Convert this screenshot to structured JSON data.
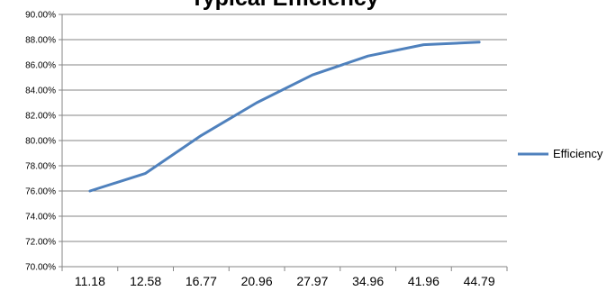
{
  "chart_data": {
    "type": "line",
    "title": "Typical Efficiency",
    "categories": [
      "11.18",
      "12.58",
      "16.77",
      "20.96",
      "27.97",
      "34.96",
      "41.96",
      "44.79"
    ],
    "series": [
      {
        "name": "Efficiency",
        "color": "#4f81bd",
        "values": [
          76.0,
          77.4,
          80.4,
          83.0,
          85.2,
          86.7,
          87.6,
          87.8
        ]
      }
    ],
    "y_tick_labels": [
      "70.00%",
      "72.00%",
      "74.00%",
      "76.00%",
      "78.00%",
      "80.00%",
      "82.00%",
      "84.00%",
      "86.00%",
      "88.00%",
      "90.00%"
    ],
    "ylim": [
      70,
      90
    ],
    "y_tick_step": 2,
    "grid": "horizontal",
    "legend_position": "right",
    "xlabel": "",
    "ylabel": ""
  }
}
